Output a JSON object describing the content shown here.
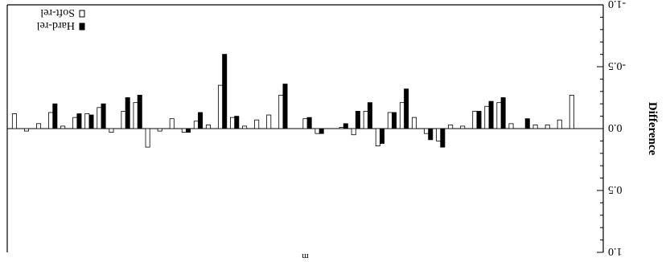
{
  "chart_data": {
    "type": "bar",
    "orientation": "flipped-180",
    "ylabel": "Difference",
    "xlabel": "m",
    "ylim": [
      -1.0,
      1.0
    ],
    "yticks": [
      -1.0,
      -0.5,
      0.0,
      0.5,
      1.0
    ],
    "ytick_labels": [
      "-1.0",
      "-0.5",
      "0.0",
      "0.5",
      "1.0"
    ],
    "grid": false,
    "legend_position": "bottom-left",
    "series": [
      {
        "name": "Hard-rel",
        "color": "#000000",
        "values": [
          0.0,
          0.0,
          0.0,
          0.0,
          0.0,
          -0.08,
          0.0,
          -0.25,
          -0.22,
          -0.14,
          0.0,
          0.0,
          0.15,
          0.09,
          0.0,
          -0.32,
          -0.13,
          0.12,
          -0.21,
          -0.14,
          -0.04,
          0.0,
          0.04,
          -0.09,
          0.0,
          -0.36,
          0.0,
          0.0,
          0.0,
          -0.1,
          -0.6,
          0.0,
          -0.13,
          0.03,
          0.0,
          0.0,
          0.0,
          -0.27,
          -0.25,
          0.0,
          -0.2,
          -0.11,
          -0.12,
          0.0,
          -0.2,
          0.0,
          0.0,
          0.0
        ]
      },
      {
        "name": "Soft-rel",
        "color": "#ffffff",
        "values": [
          0.0,
          -0.27,
          -0.07,
          -0.03,
          -0.03,
          0.0,
          -0.04,
          -0.21,
          -0.18,
          -0.14,
          -0.02,
          -0.03,
          0.1,
          0.04,
          -0.09,
          -0.21,
          -0.13,
          0.14,
          -0.14,
          0.05,
          -0.01,
          0.0,
          0.04,
          -0.08,
          0.0,
          -0.27,
          -0.11,
          -0.07,
          -0.02,
          -0.09,
          -0.35,
          -0.03,
          -0.06,
          0.03,
          -0.08,
          0.02,
          0.15,
          -0.21,
          -0.14,
          0.03,
          -0.17,
          -0.12,
          -0.09,
          -0.02,
          -0.13,
          -0.04,
          0.02,
          -0.12
        ]
      }
    ],
    "n_categories": 48
  }
}
